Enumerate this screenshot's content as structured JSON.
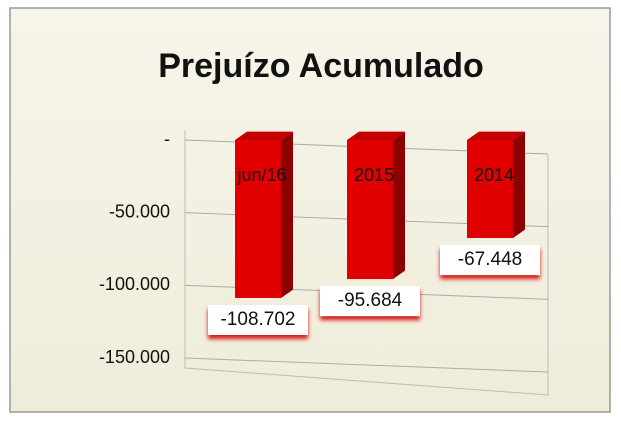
{
  "chart_data": {
    "type": "bar3d",
    "title": "Prejuízo Acumulado",
    "categories": [
      "jun/16",
      "2015",
      "2014"
    ],
    "values": [
      -108702,
      -95684,
      -67448
    ],
    "value_labels": [
      "-108.702",
      "-95.684",
      "-67.448"
    ],
    "color": "#e00000",
    "ylim": [
      -150000,
      0
    ],
    "yticks": [
      {
        "value": 0,
        "label": "-"
      },
      {
        "value": -50000,
        "label": "-50.000"
      },
      {
        "value": -100000,
        "label": "-100.000"
      },
      {
        "value": -150000,
        "label": "-150.000"
      }
    ],
    "grid": true
  }
}
